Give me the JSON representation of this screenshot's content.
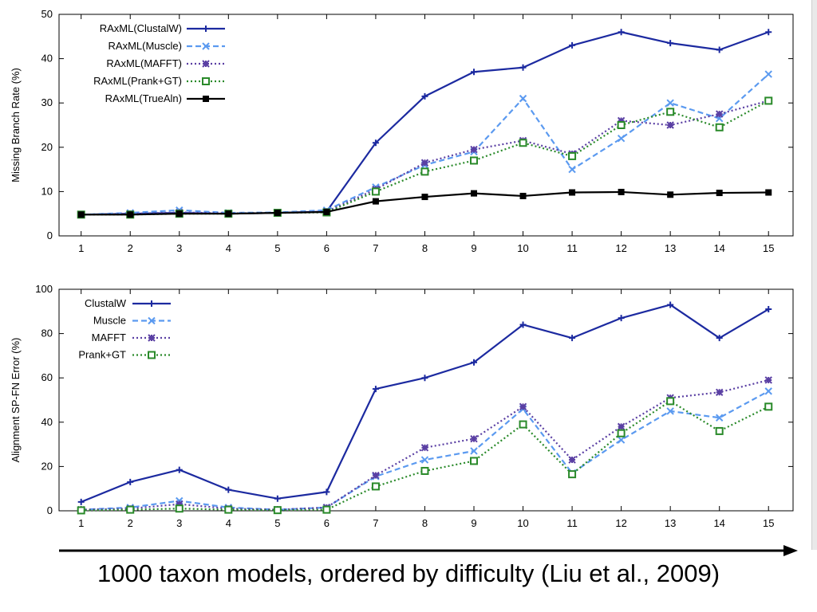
{
  "caption": "1000 taxon models, ordered by difficulty (Liu et al., 2009)",
  "chart_data": [
    {
      "type": "line",
      "title": "",
      "xlabel": "",
      "ylabel": "Missing Branch Rate (%)",
      "x": [
        1,
        2,
        3,
        4,
        5,
        6,
        7,
        8,
        9,
        10,
        11,
        12,
        13,
        14,
        15
      ],
      "xlim": [
        0.55,
        15.5
      ],
      "ylim": [
        0,
        50
      ],
      "yticks": [
        0,
        10,
        20,
        30,
        40,
        50
      ],
      "legend_position": "top-left",
      "series": [
        {
          "name": "RAxML(ClustalW)",
          "color": "#1c2aa0",
          "style": "solid",
          "marker": "plus",
          "values": [
            4.8,
            5.0,
            5.2,
            5.0,
            5.2,
            5.5,
            21,
            31.5,
            37,
            38,
            43,
            46,
            43.5,
            42,
            46
          ]
        },
        {
          "name": "RAxML(Muscle)",
          "color": "#5b9af0",
          "style": "dashed",
          "marker": "x",
          "values": [
            4.8,
            5.2,
            5.8,
            5.2,
            5.3,
            5.8,
            11,
            16,
            19,
            31,
            15,
            22,
            30,
            26.5,
            36.5
          ]
        },
        {
          "name": "RAxML(MAFFT)",
          "color": "#5a3fa3",
          "style": "dotted",
          "marker": "star",
          "values": [
            4.8,
            5.0,
            5.3,
            5.1,
            5.2,
            5.5,
            10.5,
            16.5,
            19.5,
            21.5,
            18.5,
            26,
            25,
            27.5,
            30.5
          ]
        },
        {
          "name": "RAxML(Prank+GT)",
          "color": "#2a8a2a",
          "style": "dotted",
          "marker": "square",
          "values": [
            4.8,
            4.8,
            5.0,
            5.0,
            5.2,
            5.3,
            10,
            14.5,
            17,
            21,
            18,
            25,
            28,
            24.5,
            30.5
          ]
        },
        {
          "name": "RAxML(TrueAln)",
          "color": "#000000",
          "style": "solid",
          "marker": "filled-square",
          "values": [
            4.8,
            4.8,
            5.0,
            5.0,
            5.2,
            5.4,
            7.8,
            8.8,
            9.6,
            9.0,
            9.8,
            9.9,
            9.3,
            9.7,
            9.8
          ]
        }
      ]
    },
    {
      "type": "line",
      "title": "",
      "xlabel": "",
      "ylabel": "Alignment SP-FN Error (%)",
      "x": [
        1,
        2,
        3,
        4,
        5,
        6,
        7,
        8,
        9,
        10,
        11,
        12,
        13,
        14,
        15
      ],
      "xlim": [
        0.55,
        15.5
      ],
      "ylim": [
        0,
        100
      ],
      "yticks": [
        0,
        20,
        40,
        60,
        80,
        100
      ],
      "legend_position": "top-left",
      "series": [
        {
          "name": "ClustalW",
          "color": "#1c2aa0",
          "style": "solid",
          "marker": "plus",
          "values": [
            4,
            13,
            18.5,
            9.5,
            5.5,
            8.5,
            55,
            60,
            67,
            84,
            78,
            87,
            93,
            78,
            91
          ]
        },
        {
          "name": "Muscle",
          "color": "#5b9af0",
          "style": "dashed",
          "marker": "x",
          "values": [
            0.5,
            1.5,
            4.5,
            1.5,
            0.5,
            1.5,
            15.5,
            23,
            27,
            46,
            17,
            32,
            45,
            42,
            54
          ]
        },
        {
          "name": "MAFFT",
          "color": "#5a3fa3",
          "style": "dotted",
          "marker": "star",
          "values": [
            0.5,
            1.0,
            3.0,
            1.0,
            0.5,
            1.5,
            16,
            28.5,
            32.5,
            47,
            23,
            38,
            51,
            53.5,
            59
          ]
        },
        {
          "name": "Prank+GT",
          "color": "#2a8a2a",
          "style": "dotted",
          "marker": "square",
          "values": [
            0.2,
            0.5,
            1.0,
            0.5,
            0.3,
            0.5,
            11,
            18,
            22.5,
            39,
            16.5,
            35,
            49.5,
            36,
            47
          ]
        }
      ]
    }
  ]
}
